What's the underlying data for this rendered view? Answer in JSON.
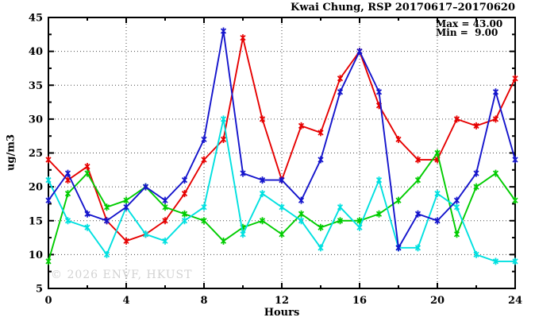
{
  "title": "Kwai Chung, RSP 20170617–20170620",
  "watermark": "© 2026 ENVF, HKUST",
  "annotation": {
    "max_label": "Max = 43.00",
    "min_label": "Min =  9.00"
  },
  "chart_data": {
    "type": "line",
    "title": "Kwai Chung, RSP 20170617–20170620",
    "xlabel": "Hours",
    "ylabel": "ug/m3",
    "xlim": [
      0,
      24
    ],
    "ylim": [
      5,
      45
    ],
    "x_major_ticks": [
      0,
      4,
      8,
      12,
      16,
      20,
      24
    ],
    "x_minor_tick_step": 2,
    "y_major_ticks": [
      5,
      10,
      15,
      20,
      25,
      30,
      35,
      40,
      45
    ],
    "y_minor_tick_step": 2.5,
    "grid": "dotted-at-major-ticks",
    "legend_position": "none",
    "stats": {
      "max": 43.0,
      "min": 9.0
    },
    "x": [
      0,
      1,
      2,
      3,
      4,
      5,
      6,
      7,
      8,
      9,
      10,
      11,
      12,
      13,
      14,
      15,
      16,
      17,
      18,
      19,
      20,
      21,
      22,
      23,
      24
    ],
    "series": [
      {
        "name": "red",
        "color": "#e60000",
        "values": [
          24,
          21,
          23,
          15,
          12,
          13,
          15,
          19,
          24,
          27,
          42,
          30,
          21,
          29,
          28,
          36,
          40,
          32,
          27,
          24,
          24,
          30,
          29,
          30,
          36
        ]
      },
      {
        "name": "green",
        "color": "#00cc00",
        "values": [
          9,
          19,
          22,
          17,
          18,
          20,
          17,
          16,
          15,
          12,
          14,
          15,
          13,
          16,
          14,
          15,
          15,
          16,
          18,
          21,
          25,
          13,
          20,
          22,
          18
        ]
      },
      {
        "name": "cyan",
        "color": "#00e0e0",
        "values": [
          21,
          15,
          14,
          10,
          17,
          13,
          12,
          15,
          17,
          30,
          13,
          19,
          17,
          15,
          11,
          17,
          14,
          21,
          11,
          11,
          19,
          17,
          10,
          9,
          9
        ]
      },
      {
        "name": "blue",
        "color": "#1414cc",
        "values": [
          18,
          22,
          16,
          15,
          17,
          20,
          18,
          21,
          27,
          43,
          22,
          21,
          21,
          18,
          24,
          34,
          40,
          34,
          11,
          16,
          15,
          18,
          22,
          34,
          24
        ]
      }
    ]
  }
}
